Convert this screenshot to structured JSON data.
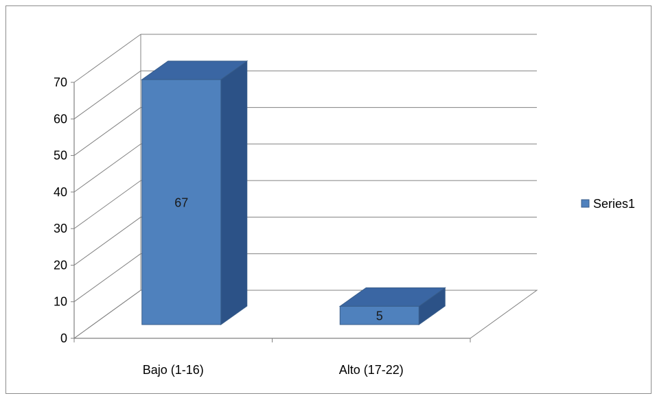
{
  "chart_data": {
    "type": "bar",
    "categories": [
      "Bajo (1-16)",
      "Alto (17-22)"
    ],
    "series": [
      {
        "name": "Series1",
        "values": [
          67,
          5
        ]
      }
    ],
    "ylim": [
      0,
      70
    ],
    "yticks": [
      0,
      10,
      20,
      30,
      40,
      50,
      60,
      70
    ],
    "grid": true,
    "legend": "right",
    "three_d": true,
    "colors": {
      "front": "#4f81bd",
      "top": "#3a66a3",
      "side": "#2c5287",
      "edge": "#385d8a",
      "grid": "#808080"
    }
  }
}
